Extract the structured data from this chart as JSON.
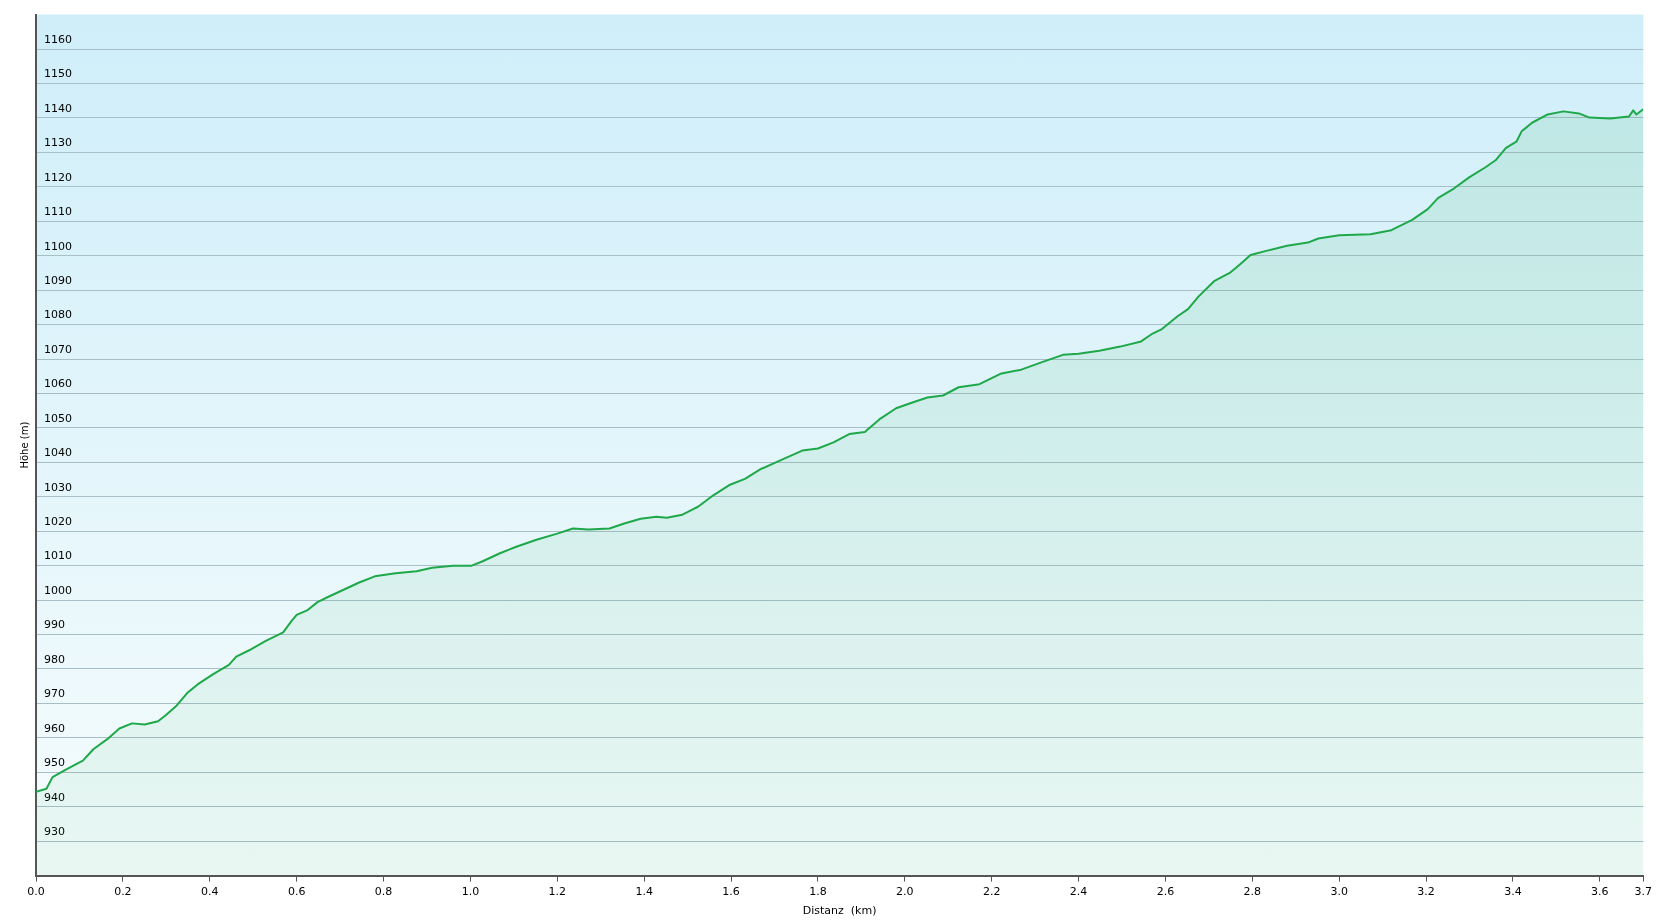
{
  "chart_data": {
    "type": "area",
    "xlabel": "Distanz  (km)",
    "ylabel": "Höhe (m)",
    "xlim": [
      0,
      3.7
    ],
    "xticks": [
      {
        "value": 0,
        "label": "0.0"
      },
      0.2,
      0.4,
      0.6,
      0.8,
      {
        "value": 1,
        "label": "1.0"
      },
      1.2,
      1.4,
      1.6,
      1.8,
      {
        "value": 2,
        "label": "2.0"
      },
      2.2,
      2.4,
      2.6,
      2.8,
      {
        "value": 3,
        "label": "3.0"
      },
      3.2,
      3.4,
      3.6,
      3.7
    ],
    "ylim": [
      920,
      1170
    ],
    "yticks": [
      930,
      940,
      950,
      960,
      970,
      980,
      990,
      1000,
      1010,
      1020,
      1030,
      1040,
      1050,
      1060,
      1070,
      1080,
      1090,
      1100,
      1110,
      1120,
      1130,
      1140,
      1150,
      1160
    ],
    "grid": "y",
    "legend": false,
    "marker": "none",
    "line_style": "solid",
    "series": [
      {
        "color": "#1fa84a",
        "x": [
          0,
          0.024,
          0.038,
          0.072,
          0.108,
          0.132,
          0.168,
          0.192,
          0.221,
          0.25,
          0.281,
          0.3,
          0.324,
          0.348,
          0.372,
          0.408,
          0.444,
          0.461,
          0.492,
          0.528,
          0.569,
          0.588,
          0.6,
          0.624,
          0.648,
          0.672,
          0.708,
          0.744,
          0.78,
          0.828,
          0.876,
          0.912,
          0.96,
          1.003,
          1.027,
          1.068,
          1.104,
          1.152,
          1.2,
          1.236,
          1.272,
          1.32,
          1.356,
          1.392,
          1.428,
          1.452,
          1.488,
          1.524,
          1.56,
          1.596,
          1.632,
          1.668,
          1.716,
          1.764,
          1.8,
          1.836,
          1.872,
          1.908,
          1.944,
          1.98,
          2.016,
          2.052,
          2.088,
          2.124,
          2.172,
          2.22,
          2.268,
          2.316,
          2.364,
          2.4,
          2.448,
          2.496,
          2.544,
          2.568,
          2.592,
          2.628,
          2.652,
          2.676,
          2.712,
          2.748,
          2.772,
          2.796,
          2.832,
          2.88,
          2.928,
          2.952,
          3.0,
          3.072,
          3.12,
          3.168,
          3.204,
          3.228,
          3.264,
          3.3,
          3.336,
          3.36,
          3.384,
          3.408,
          3.42,
          3.444,
          3.48,
          3.516,
          3.552,
          3.576,
          3.624,
          3.667,
          3.677,
          3.684,
          3.7
        ],
        "values": [
          944.3,
          945.2,
          948.6,
          951,
          953.4,
          956.7,
          960,
          962.7,
          964.2,
          963.9,
          964.8,
          966.7,
          969.4,
          973,
          975.5,
          978.5,
          981.2,
          983.6,
          985.5,
          988.1,
          990.6,
          993.9,
          995.7,
          997,
          999.4,
          1000.9,
          1003,
          1005.1,
          1006.9,
          1007.8,
          1008.4,
          1009.4,
          1010,
          1010,
          1011.2,
          1013.6,
          1015.4,
          1017.5,
          1019.3,
          1020.8,
          1020.5,
          1020.8,
          1022.3,
          1023.6,
          1024.2,
          1023.9,
          1024.8,
          1027.1,
          1030.5,
          1033.4,
          1035.2,
          1038,
          1040.7,
          1043.4,
          1044,
          1045.8,
          1048.2,
          1048.8,
          1052.7,
          1055.7,
          1057.3,
          1058.8,
          1059.4,
          1061.8,
          1062.7,
          1065.7,
          1066.9,
          1069.1,
          1071.2,
          1071.5,
          1072.4,
          1073.6,
          1075.1,
          1077.2,
          1078.7,
          1082.4,
          1084.5,
          1088.1,
          1092.6,
          1095,
          1097.5,
          1100.2,
          1101.4,
          1102.9,
          1103.8,
          1105,
          1105.9,
          1106.2,
          1107.4,
          1110.4,
          1113.5,
          1116.8,
          1119.5,
          1122.8,
          1125.6,
          1127.7,
          1131.3,
          1133.1,
          1136.1,
          1138.6,
          1141,
          1141.9,
          1141.3,
          1140.1,
          1139.8,
          1140.4,
          1142.2,
          1141,
          1142.5
        ]
      }
    ]
  }
}
